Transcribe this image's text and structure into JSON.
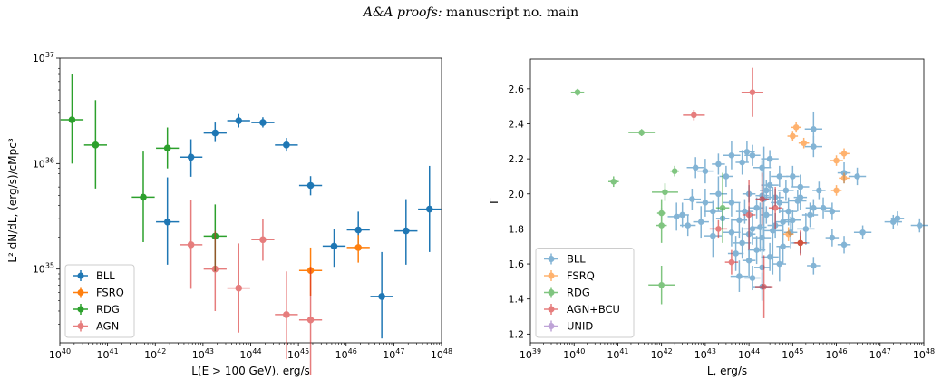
{
  "header": {
    "journal": "A&A proofs:",
    "rest": "manuscript no. main"
  },
  "chart_data": [
    {
      "type": "scatter",
      "subtype": "errorbar",
      "xscale": "log",
      "yscale": "log",
      "xlim": [
        1e+40,
        1e+48
      ],
      "ylim": [
        2e+34,
        1e+37
      ],
      "xlabel": "L(E > 100 GeV), erg/s",
      "ylabel": "L² dN/dL, (erg/s)/cMpc³",
      "xticks": [
        {
          "v": 1e+40,
          "m": "10",
          "e": "40"
        },
        {
          "v": 1e+41,
          "m": "10",
          "e": "41"
        },
        {
          "v": 1e+42,
          "m": "10",
          "e": "42"
        },
        {
          "v": 1e+43,
          "m": "10",
          "e": "43"
        },
        {
          "v": 1e+44,
          "m": "10",
          "e": "44"
        },
        {
          "v": 1e+45,
          "m": "10",
          "e": "45"
        },
        {
          "v": 1e+46,
          "m": "10",
          "e": "46"
        },
        {
          "v": 1e+47,
          "m": "10",
          "e": "47"
        },
        {
          "v": 1e+48,
          "m": "10",
          "e": "48"
        }
      ],
      "yticks": [
        {
          "v": 1e+35,
          "m": "10",
          "e": "35"
        },
        {
          "v": 1e+36,
          "m": "10",
          "e": "36"
        },
        {
          "v": 1e+37,
          "m": "10",
          "e": "37"
        }
      ],
      "legend_position": "bottom-left",
      "series": [
        {
          "name": "BLL",
          "color": "#1f77b4",
          "alpha": 1,
          "points": [
            [
              1.8e+42,
              2.8e+35,
              0.24,
              7.4e+35,
              1.1e+35
            ],
            [
              5.6e+42,
              1.15e+36,
              0.24,
              1.7e+36,
              7.5e+35
            ],
            [
              1.8e+43,
              1.95e+36,
              0.24,
              2.45e+36,
              1.6e+36
            ],
            [
              5.6e+43,
              2.55e+36,
              0.24,
              2.95e+36,
              2.2e+36
            ],
            [
              1.8e+44,
              2.45e+36,
              0.24,
              2.75e+36,
              2.2e+36
            ],
            [
              5.6e+44,
              1.5e+36,
              0.24,
              1.75e+36,
              1.3e+36
            ],
            [
              1.8e+45,
              6.2e+35,
              0.24,
              7.6e+35,
              5e+35
            ],
            [
              5.6e+45,
              1.65e+35,
              0.24,
              2.4e+35,
              1.05e+35
            ],
            [
              1.8e+46,
              2.35e+35,
              0.24,
              3.5e+35,
              1.6e+35
            ],
            [
              5.6e+46,
              5.5e+34,
              0.24,
              1.45e+35,
              2.2e+34
            ],
            [
              1.8e+47,
              2.3e+35,
              0.24,
              4.6e+35,
              1.1e+35
            ],
            [
              5.6e+47,
              3.7e+35,
              0.24,
              9.5e+35,
              1.45e+35
            ]
          ]
        },
        {
          "name": "FSRQ",
          "color": "#ff7f0e",
          "alpha": 1,
          "points": [
            [
              1.8e+45,
              9.7e+34,
              0.24,
              1.6e+35,
              5.6e+34
            ],
            [
              1.8e+46,
              1.6e+35,
              0.24,
              2.1e+35,
              1.15e+35
            ]
          ]
        },
        {
          "name": "RDG",
          "color": "#2ca02c",
          "alpha": 1,
          "points": [
            [
              1.8e+40,
              2.6e+36,
              0.24,
              7e+36,
              1e+36
            ],
            [
              5.6e+40,
              1.5e+36,
              0.24,
              4e+36,
              5.8e+35
            ],
            [
              5.6e+41,
              4.8e+35,
              0.24,
              1.3e+36,
              1.8e+35
            ],
            [
              1.8e+42,
              1.4e+36,
              0.24,
              2.2e+36,
              9e+35
            ],
            [
              1.8e+43,
              2.05e+35,
              0.24,
              4.1e+35,
              9.5e+34
            ]
          ]
        },
        {
          "name": "AGN",
          "color": "#d62728",
          "alpha": 0.6,
          "points": [
            [
              5.6e+42,
              1.7e+35,
              0.24,
              4.5e+35,
              6.5e+34
            ],
            [
              1.8e+43,
              1e+35,
              0.24,
              2.3e+35,
              4e+34
            ],
            [
              5.6e+43,
              6.6e+34,
              0.24,
              1.75e+35,
              2.5e+34
            ],
            [
              1.8e+44,
              1.9e+35,
              0.24,
              3e+35,
              1.2e+35
            ],
            [
              5.6e+44,
              3.7e+34,
              0.24,
              9.5e+34,
              1.4e+34
            ],
            [
              1.8e+45,
              3.3e+34,
              0.24,
              1.05e+35,
              1e+34
            ]
          ]
        }
      ]
    },
    {
      "type": "scatter",
      "subtype": "errorbar",
      "xscale": "log",
      "yscale": "linear",
      "xlim": [
        1e+39,
        1e+48
      ],
      "ylim": [
        1.15,
        2.77
      ],
      "xlabel": "L, erg/s",
      "ylabel": "Γ",
      "xticks": [
        {
          "v": 1e+39,
          "m": "10",
          "e": "39"
        },
        {
          "v": 1e+40,
          "m": "10",
          "e": "40"
        },
        {
          "v": 1e+41,
          "m": "10",
          "e": "41"
        },
        {
          "v": 1e+42,
          "m": "10",
          "e": "42"
        },
        {
          "v": 1e+43,
          "m": "10",
          "e": "43"
        },
        {
          "v": 1e+44,
          "m": "10",
          "e": "44"
        },
        {
          "v": 1e+45,
          "m": "10",
          "e": "45"
        },
        {
          "v": 1e+46,
          "m": "10",
          "e": "46"
        },
        {
          "v": 1e+47,
          "m": "10",
          "e": "47"
        },
        {
          "v": 1e+48,
          "m": "10",
          "e": "48"
        }
      ],
      "yticks": [
        {
          "v": 1.2,
          "t": "1.2"
        },
        {
          "v": 1.4,
          "t": "1.4"
        },
        {
          "v": 1.6,
          "t": "1.6"
        },
        {
          "v": 1.8,
          "t": "1.8"
        },
        {
          "v": 2.0,
          "t": "2.0"
        },
        {
          "v": 2.2,
          "t": "2.2"
        },
        {
          "v": 2.4,
          "t": "2.4"
        },
        {
          "v": 2.6,
          "t": "2.6"
        }
      ],
      "legend_position": "bottom-left",
      "series": [
        {
          "name": "BLL",
          "color": "#1f77b4",
          "alpha": 0.55,
          "points": [
            [
              3e+43,
              2.1,
              0.15,
              0.06
            ],
            [
              4e+43,
              1.95,
              0.2,
              0.08
            ],
            [
              6e+43,
              1.85,
              0.18,
              0.1
            ],
            [
              8e+43,
              1.9,
              0.2,
              0.07
            ],
            [
              1e+44,
              2.0,
              0.15,
              0.05
            ],
            [
              1.2e+44,
              1.8,
              0.2,
              0.09
            ],
            [
              1.5e+44,
              1.92,
              0.18,
              0.06
            ],
            [
              2e+44,
              1.75,
              0.2,
              0.12
            ],
            [
              2.5e+44,
              1.88,
              0.15,
              0.05
            ],
            [
              3e+44,
              2.05,
              0.2,
              0.08
            ],
            [
              4e+44,
              1.82,
              0.18,
              0.07
            ],
            [
              5e+44,
              1.95,
              0.2,
              0.06
            ],
            [
              6e+44,
              1.7,
              0.15,
              0.1
            ],
            [
              8e+44,
              1.9,
              0.2,
              0.08
            ],
            [
              1e+45,
              1.85,
              0.18,
              0.06
            ],
            [
              1.5e+45,
              1.98,
              0.15,
              0.07
            ],
            [
              2e+45,
              1.8,
              0.2,
              0.09
            ],
            [
              3e+45,
              1.92,
              0.18,
              0.05
            ],
            [
              5e+44,
              2.1,
              0.2,
              0.06
            ],
            [
              2e+44,
              2.15,
              0.2,
              0.05
            ],
            [
              7e+43,
              2.18,
              0.15,
              0.07
            ],
            [
              1.2e+44,
              2.22,
              0.18,
              0.06
            ],
            [
              3e+44,
              2.2,
              0.2,
              0.05
            ],
            [
              1e+45,
              2.1,
              0.15,
              0.06
            ],
            [
              2e+43,
              2.0,
              0.2,
              0.1
            ],
            [
              1e+43,
              1.95,
              0.2,
              0.08
            ],
            [
              5e+42,
              1.97,
              0.2,
              0.06
            ],
            [
              3e+42,
              1.88,
              0.15,
              0.07
            ],
            [
              8e+42,
              1.84,
              0.18,
              0.09
            ],
            [
              1.5e+43,
              1.76,
              0.2,
              0.12
            ],
            [
              2.5e+43,
              1.86,
              0.15,
              0.06
            ],
            [
              4e+43,
              1.78,
              0.2,
              0.08
            ],
            [
              5e+43,
              1.66,
              0.18,
              0.1
            ],
            [
              7e+43,
              1.72,
              0.2,
              0.09
            ],
            [
              1e+44,
              1.62,
              0.15,
              0.1
            ],
            [
              1.5e+44,
              1.68,
              0.2,
              0.08
            ],
            [
              2e+44,
              1.58,
              0.18,
              0.12
            ],
            [
              3e+44,
              1.64,
              0.2,
              0.08
            ],
            [
              5e+44,
              1.6,
              0.15,
              0.1
            ],
            [
              1.5e+45,
              1.72,
              0.2,
              0.06
            ],
            [
              3e+45,
              1.59,
              0.15,
              0.05
            ],
            [
              6e+43,
              1.53,
              0.2,
              0.09
            ],
            [
              1.2e+44,
              1.52,
              0.18,
              0.07
            ],
            [
              2e+44,
              1.47,
              0.2,
              0.08
            ],
            [
              2.5e+44,
              2.02,
              0.15,
              0.06
            ],
            [
              4e+44,
              1.98,
              0.2,
              0.05
            ],
            [
              7e+44,
              2.02,
              0.18,
              0.06
            ],
            [
              1.5e+45,
              2.04,
              0.2,
              0.07
            ],
            [
              4e+45,
              2.02,
              0.15,
              0.05
            ],
            [
              5e+45,
              1.92,
              0.2,
              0.06
            ],
            [
              8e+45,
              1.9,
              0.18,
              0.05
            ],
            [
              3e+46,
              2.1,
              0.2,
              0.05
            ],
            [
              1.5e+46,
              2.12,
              0.15,
              0.06
            ],
            [
              8e+45,
              1.75,
              0.15,
              0.05
            ],
            [
              1.5e+46,
              1.71,
              0.15,
              0.05
            ],
            [
              4e+46,
              1.78,
              0.2,
              0.04
            ],
            [
              2e+47,
              1.84,
              0.2,
              0.04
            ],
            [
              2.5e+47,
              1.86,
              0.15,
              0.04
            ],
            [
              8e+47,
              1.82,
              0.2,
              0.04
            ],
            [
              6e+42,
              2.15,
              0.2,
              0.06
            ],
            [
              1e+43,
              2.13,
              0.18,
              0.07
            ],
            [
              2e+43,
              2.17,
              0.15,
              0.06
            ],
            [
              4e+43,
              2.22,
              0.2,
              0.08
            ],
            [
              9e+43,
              2.24,
              0.18,
              0.06
            ],
            [
              2e+44,
              1.99,
              0.15,
              0.2
            ],
            [
              2.2e+44,
              1.97,
              0.15,
              0.3
            ],
            [
              3.5e+44,
              1.79,
              0.2,
              0.25
            ],
            [
              6e+44,
              1.84,
              0.18,
              0.08
            ],
            [
              9e+44,
              1.78,
              0.15,
              0.09
            ],
            [
              1.3e+45,
              1.96,
              0.2,
              0.06
            ],
            [
              2.5e+45,
              1.88,
              0.18,
              0.07
            ],
            [
              2.2e+42,
              1.87,
              0.2,
              0.08
            ],
            [
              4e+42,
              1.82,
              0.18,
              0.06
            ],
            [
              1.5e+43,
              1.9,
              0.2,
              0.06
            ],
            [
              3e+45,
              2.27,
              0.2,
              0.06
            ],
            [
              3e+45,
              2.37,
              0.2,
              0.1
            ],
            [
              1e+44,
              1.77,
              0.15,
              0.16
            ],
            [
              1.8e+44,
              1.81,
              0.15,
              0.14
            ]
          ]
        },
        {
          "name": "FSRQ",
          "color": "#ff7f0e",
          "alpha": 0.6,
          "points": [
            [
              1.2e+45,
              2.38,
              0.12,
              0.03
            ],
            [
              1e+45,
              2.33,
              0.12,
              0.03
            ],
            [
              1.8e+45,
              2.29,
              0.12,
              0.03
            ],
            [
              1.5e+46,
              2.23,
              0.12,
              0.03
            ],
            [
              1e+46,
              2.19,
              0.15,
              0.03
            ],
            [
              1.5e+46,
              2.09,
              0.12,
              0.03
            ],
            [
              1e+46,
              2.02,
              0.12,
              0.03
            ],
            [
              8e+44,
              1.77,
              0.12,
              0.04
            ],
            [
              1.5e+45,
              1.72,
              0.12,
              0.04
            ]
          ]
        },
        {
          "name": "RDG",
          "color": "#2ca02c",
          "alpha": 0.6,
          "points": [
            [
              1.2e+40,
              2.58,
              0.15,
              0.02
            ],
            [
              3.5e+41,
              2.35,
              0.3,
              0.02
            ],
            [
              8e+40,
              2.07,
              0.12,
              0.03
            ],
            [
              2e+42,
              2.13,
              0.1,
              0.03
            ],
            [
              1.2e+42,
              2.01,
              0.3,
              0.05
            ],
            [
              1e+42,
              1.89,
              0.1,
              0.08
            ],
            [
              1e+42,
              1.82,
              0.12,
              0.1
            ],
            [
              1e+42,
              1.48,
              0.3,
              0.11
            ],
            [
              2.5e+43,
              1.92,
              0.15,
              0.2
            ]
          ]
        },
        {
          "name": "AGN+BCU",
          "color": "#d62728",
          "alpha": 0.6,
          "points": [
            [
              5.5e+42,
              2.45,
              0.25,
              0.03
            ],
            [
              1.2e+44,
              2.58,
              0.25,
              0.14
            ],
            [
              2e+44,
              1.97,
              0.15,
              0.15
            ],
            [
              4e+44,
              1.92,
              0.15,
              0.12
            ],
            [
              1e+44,
              1.88,
              0.15,
              0.2
            ],
            [
              1.5e+45,
              1.72,
              0.15,
              0.07
            ],
            [
              4e+43,
              1.61,
              0.15,
              0.07
            ],
            [
              2e+43,
              1.8,
              0.2,
              0.05
            ],
            [
              2.2e+44,
              1.47,
              0.2,
              0.18
            ]
          ]
        },
        {
          "name": "UNID",
          "color": "#9467bd",
          "alpha": 0.6,
          "points": []
        }
      ]
    }
  ]
}
